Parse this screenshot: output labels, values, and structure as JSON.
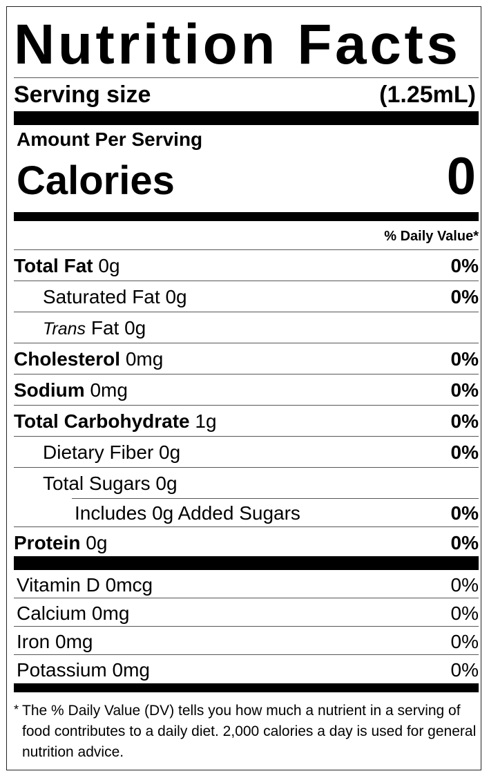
{
  "title": "Nutrition Facts",
  "serving": {
    "label": "Serving size",
    "value": "(1.25mL)"
  },
  "amount_per_serving": "Amount Per Serving",
  "calories": {
    "label": "Calories",
    "value": "0"
  },
  "dv_header": "% Daily Value*",
  "nutrients": [
    {
      "name": "Total Fat",
      "amount": "0g",
      "dv": "0%"
    },
    {
      "name": "Saturated Fat",
      "amount": "0g",
      "dv": "0%"
    },
    {
      "name_italic": "Trans",
      "name": "Fat",
      "amount": "0g"
    },
    {
      "name": "Cholesterol",
      "amount": "0mg",
      "dv": "0%"
    },
    {
      "name": "Sodium",
      "amount": "0mg",
      "dv": "0%"
    },
    {
      "name": "Total Carbohydrate",
      "amount": "1g",
      "dv": "0%"
    },
    {
      "name": "Dietary Fiber",
      "amount": "0g",
      "dv": "0%"
    },
    {
      "name": "Total Sugars",
      "amount": "0g"
    },
    {
      "name": "Includes",
      "amount": "0g",
      "suffix": "Added Sugars",
      "dv": "0%"
    },
    {
      "name": "Protein",
      "amount": "0g",
      "dv": "0%"
    }
  ],
  "vitamins": [
    {
      "name": "Vitamin D",
      "amount": "0mcg",
      "dv": "0%"
    },
    {
      "name": "Calcium",
      "amount": "0mg",
      "dv": "0%"
    },
    {
      "name": "Iron",
      "amount": "0mg",
      "dv": "0%"
    },
    {
      "name": "Potassium",
      "amount": "0mg",
      "dv": "0%"
    }
  ],
  "footnote": {
    "mark": "*",
    "text": "The % Daily Value (DV) tells you how much a nutrient in a serving of food contributes to a daily diet. 2,000 calories a day is used for general nutrition advice."
  }
}
